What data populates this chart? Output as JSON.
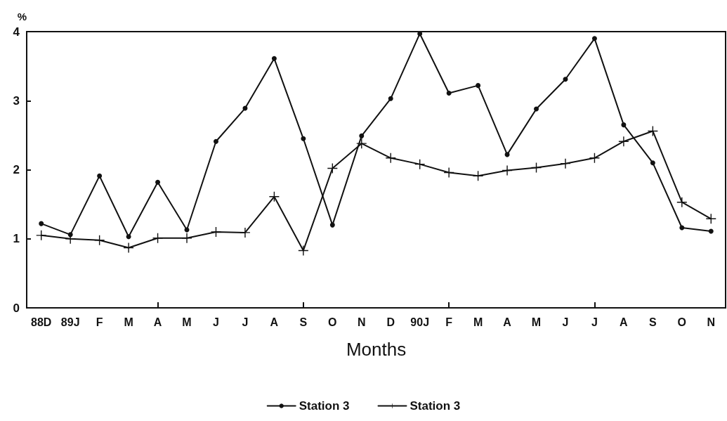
{
  "chart_data": {
    "type": "line",
    "ylabel": "%",
    "xlabel": "Months",
    "categories": [
      "88D",
      "89J",
      "F",
      "M",
      "A",
      "M",
      "J",
      "J",
      "A",
      "S",
      "O",
      "N",
      "D",
      "90J",
      "F",
      "M",
      "A",
      "M",
      "J",
      "J",
      "A",
      "S",
      "O",
      "N"
    ],
    "series": [
      {
        "name": "Station 3",
        "color": "#111111",
        "marker": "circle",
        "values": [
          1.22,
          1.06,
          1.91,
          1.03,
          1.82,
          1.13,
          2.41,
          2.89,
          3.61,
          2.45,
          1.2,
          2.49,
          3.03,
          3.97,
          3.11,
          3.22,
          2.22,
          2.88,
          3.31,
          3.9,
          2.65,
          2.1,
          1.16,
          1.11
        ]
      },
      {
        "name": "Station 3",
        "color": "#111111",
        "marker": "cross",
        "values": [
          1.05,
          1.0,
          0.98,
          0.87,
          1.01,
          1.01,
          1.1,
          1.09,
          1.61,
          0.83,
          2.02,
          2.38,
          2.17,
          2.08,
          1.96,
          1.91,
          1.99,
          2.03,
          2.09,
          2.17,
          2.41,
          2.56,
          1.53,
          1.29
        ]
      }
    ],
    "ylim": [
      0,
      4
    ],
    "yticks": [
      0,
      1,
      2,
      3,
      4
    ],
    "grid": false,
    "legend": "bottom",
    "line_style": "solid"
  }
}
